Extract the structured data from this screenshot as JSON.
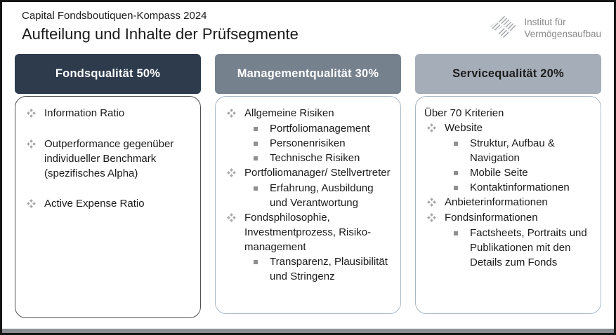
{
  "header": {
    "kicker": "Capital Fondsboutiquen-Kompass 2024",
    "title": "Aufteilung und Inhalte der Prüfsegmente"
  },
  "logo": {
    "line1": "Institut für",
    "line2": "Vermögensaufbau"
  },
  "colors": {
    "frame": "#141414",
    "bottom_bar": "#8a8f94",
    "text": "#1a1a1a",
    "level1_bullet": "#a8a8a8",
    "level2_bullet": "#8f8f8f",
    "logo_gray": "#a7abaf",
    "logo_text_gray": "#8a8a8a"
  },
  "icons": {
    "level1_bullet": "diamond-cluster-icon",
    "level2_bullet": "square-bullet-icon",
    "logo": "iva-diamond-icon"
  },
  "columns": [
    {
      "id": "fondsqualitaet",
      "header": "Fondsqualität 50%",
      "header_bg": "#2d3b4d",
      "header_text_color": "#ffffff",
      "box_border_color": "#4f4f4f",
      "spaced_items": true,
      "intro": null,
      "items": [
        {
          "level": 1,
          "text": "Information Ratio"
        },
        {
          "level": 1,
          "text": "Outperformance gegenüber individueller Benchmark (spezifisches Alpha)"
        },
        {
          "level": 1,
          "text": "Active Expense Ratio"
        }
      ]
    },
    {
      "id": "managementqualitaet",
      "header": "Managementqualität 30%",
      "header_bg": "#76818e",
      "header_text_color": "#ffffff",
      "box_border_color": "#a9b8c6",
      "spaced_items": false,
      "intro": null,
      "items": [
        {
          "level": 1,
          "text": "Allgemeine Risiken"
        },
        {
          "level": 2,
          "text": "Portfoliomanagement"
        },
        {
          "level": 2,
          "text": "Personenrisiken"
        },
        {
          "level": 2,
          "text": "Technische Risiken"
        },
        {
          "level": 1,
          "text": "Portfoliomanager/ Stellvertreter"
        },
        {
          "level": 2,
          "text": "Erfahrung, Ausbildung und Verantwortung"
        },
        {
          "level": 1,
          "text": "Fondsphilosophie, Investmentprozess, Risiko-management"
        },
        {
          "level": 2,
          "text": "Transparenz, Plausibilität und Stringenz"
        }
      ]
    },
    {
      "id": "servicequalitaet",
      "header": "Servicequalität 20%",
      "header_bg": "#a5aeb8",
      "header_text_color": "#1c1c1c",
      "box_border_color": "#a9b8c6",
      "spaced_items": false,
      "intro": "Über 70 Kriterien",
      "items": [
        {
          "level": 1,
          "text": "Website"
        },
        {
          "level": 2,
          "text": "Struktur, Aufbau & Navigation"
        },
        {
          "level": 2,
          "text": "Mobile Seite"
        },
        {
          "level": 2,
          "text": "Kontaktinformationen"
        },
        {
          "level": 1,
          "text": "Anbieterinformationen"
        },
        {
          "level": 1,
          "text": "Fondsinformationen"
        },
        {
          "level": 2,
          "text": "Factsheets, Portraits und Publikationen mit den Details zum Fonds"
        }
      ]
    }
  ]
}
